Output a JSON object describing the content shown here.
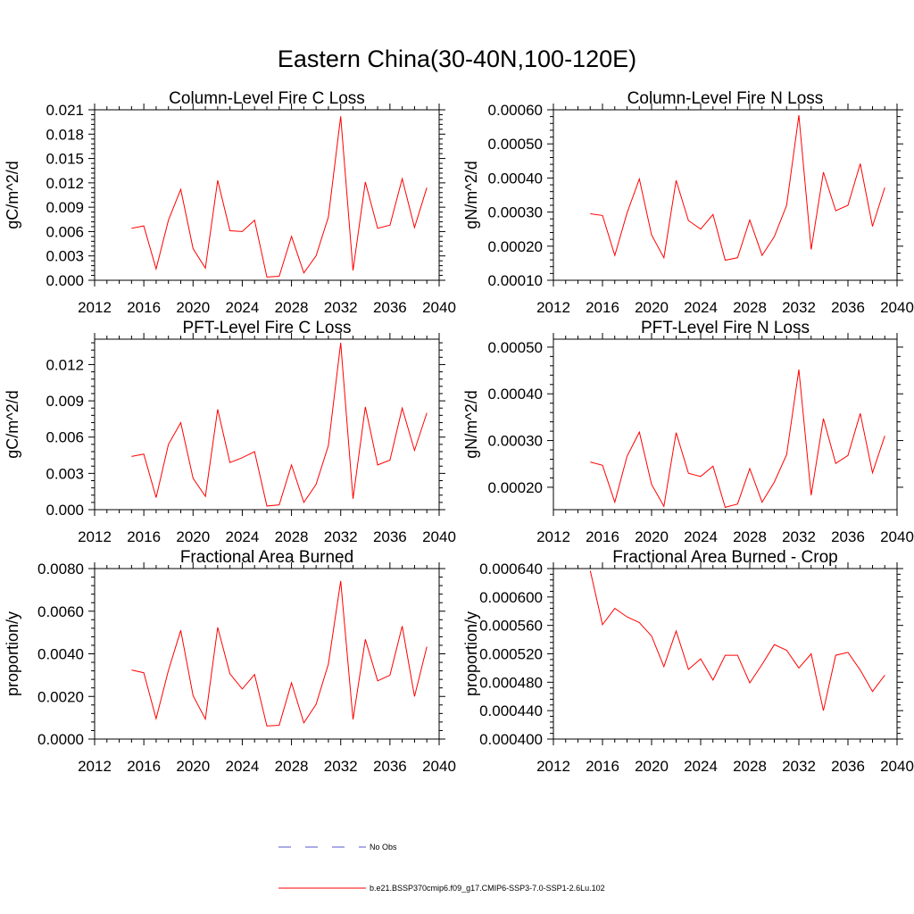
{
  "figure": {
    "title": "Eastern China(30-40N,100-120E)"
  },
  "legend": {
    "items": [
      {
        "label": "No Obs",
        "color": "#5555cc",
        "style": "dashed"
      },
      {
        "label": "b.e21.BSSP370cmip6.f09_g17.CMIP6-SSP3-7.0-SSP1-2.6Lu.102",
        "color": "#ff0000",
        "style": "solid"
      }
    ]
  },
  "chart_data": [
    {
      "type": "line",
      "title": "Column-Level Fire C Loss",
      "ylabel": "gC/m^2/d",
      "xlim": [
        2012,
        2040
      ],
      "ylim": [
        0,
        0.021
      ],
      "xticks": [
        "2012",
        "2016",
        "2020",
        "2024",
        "2028",
        "2032",
        "2036",
        "2040"
      ],
      "yticks": [
        "0.000",
        "0.003",
        "0.006",
        "0.009",
        "0.012",
        "0.015",
        "0.018",
        "0.021"
      ],
      "x": [
        2015,
        2016,
        2017,
        2018,
        2019,
        2020,
        2021,
        2022,
        2023,
        2024,
        2025,
        2026,
        2027,
        2028,
        2029,
        2030,
        2031,
        2032,
        2033,
        2034,
        2035,
        2036,
        2037,
        2038,
        2039
      ],
      "series": [
        {
          "color": "#ff0000",
          "values": [
            0.0064,
            0.0067,
            0.0014,
            0.0074,
            0.0112,
            0.0039,
            0.0015,
            0.0123,
            0.0061,
            0.006,
            0.0074,
            0.0004,
            0.0005,
            0.0054,
            0.0009,
            0.003,
            0.0078,
            0.0202,
            0.0012,
            0.0121,
            0.0064,
            0.0068,
            0.0125,
            0.0065,
            0.0114
          ]
        }
      ]
    },
    {
      "type": "line",
      "title": "Column-Level Fire N Loss",
      "ylabel": "gN/m^2/d",
      "xlim": [
        2012,
        2040
      ],
      "ylim": [
        0.0001,
        0.0006
      ],
      "xticks": [
        "2012",
        "2016",
        "2020",
        "2024",
        "2028",
        "2032",
        "2036",
        "2040"
      ],
      "yticks": [
        "0.00010",
        "0.00020",
        "0.00030",
        "0.00040",
        "0.00050",
        "0.00060"
      ],
      "x": [
        2015,
        2016,
        2017,
        2018,
        2019,
        2020,
        2021,
        2022,
        2023,
        2024,
        2025,
        2026,
        2027,
        2028,
        2029,
        2030,
        2031,
        2032,
        2033,
        2034,
        2035,
        2036,
        2037,
        2038,
        2039
      ],
      "series": [
        {
          "color": "#ff0000",
          "values": [
            0.000295,
            0.00029,
            0.000173,
            0.000297,
            0.000397,
            0.000233,
            0.000166,
            0.000393,
            0.000275,
            0.00025,
            0.000293,
            0.000159,
            0.000166,
            0.000277,
            0.000173,
            0.000228,
            0.00032,
            0.000584,
            0.00019,
            0.000417,
            0.000304,
            0.00032,
            0.000442,
            0.000258,
            0.000372
          ]
        }
      ]
    },
    {
      "type": "line",
      "title": "PFT-Level Fire C Loss",
      "ylabel": "gC/m^2/d",
      "xlim": [
        2012,
        2040
      ],
      "ylim": [
        0,
        0.0141
      ],
      "xticks": [
        "2012",
        "2016",
        "2020",
        "2024",
        "2028",
        "2032",
        "2036",
        "2040"
      ],
      "yticks": [
        "0.000",
        "0.003",
        "0.006",
        "0.009",
        "0.012"
      ],
      "x": [
        2015,
        2016,
        2017,
        2018,
        2019,
        2020,
        2021,
        2022,
        2023,
        2024,
        2025,
        2026,
        2027,
        2028,
        2029,
        2030,
        2031,
        2032,
        2033,
        2034,
        2035,
        2036,
        2037,
        2038,
        2039
      ],
      "series": [
        {
          "color": "#ff0000",
          "values": [
            0.0044,
            0.0046,
            0.001,
            0.0054,
            0.0072,
            0.0026,
            0.0011,
            0.0083,
            0.0039,
            0.0043,
            0.0048,
            0.0003,
            0.0004,
            0.0037,
            0.0006,
            0.0021,
            0.0053,
            0.0138,
            0.0009,
            0.0085,
            0.0037,
            0.0041,
            0.0084,
            0.0049,
            0.008
          ]
        }
      ]
    },
    {
      "type": "line",
      "title": "PFT-Level Fire N Loss",
      "ylabel": "gN/m^2/d",
      "xlim": [
        2012,
        2040
      ],
      "ylim": [
        0.000152,
        0.000517
      ],
      "xticks": [
        "2012",
        "2016",
        "2020",
        "2024",
        "2028",
        "2032",
        "2036",
        "2040"
      ],
      "yticks": [
        "0.00020",
        "0.00030",
        "0.00040",
        "0.00050"
      ],
      "x": [
        2015,
        2016,
        2017,
        2018,
        2019,
        2020,
        2021,
        2022,
        2023,
        2024,
        2025,
        2026,
        2027,
        2028,
        2029,
        2030,
        2031,
        2032,
        2033,
        2034,
        2035,
        2036,
        2037,
        2038,
        2039
      ],
      "series": [
        {
          "color": "#ff0000",
          "values": [
            0.000254,
            0.000247,
            0.000168,
            0.000266,
            0.000318,
            0.000206,
            0.000159,
            0.000317,
            0.00023,
            0.000223,
            0.000245,
            0.000157,
            0.000164,
            0.00024,
            0.000168,
            0.000211,
            0.00027,
            0.000452,
            0.000183,
            0.000347,
            0.000251,
            0.000268,
            0.000358,
            0.000231,
            0.00031
          ]
        }
      ]
    },
    {
      "type": "line",
      "title": "Fractional Area Burned",
      "ylabel": "proportion/y",
      "xlim": [
        2012,
        2040
      ],
      "ylim": [
        0,
        0.008
      ],
      "xticks": [
        "2012",
        "2016",
        "2020",
        "2024",
        "2028",
        "2032",
        "2036",
        "2040"
      ],
      "yticks": [
        "0.0000",
        "0.0020",
        "0.0040",
        "0.0060",
        "0.0080"
      ],
      "x": [
        2015,
        2016,
        2017,
        2018,
        2019,
        2020,
        2021,
        2022,
        2023,
        2024,
        2025,
        2026,
        2027,
        2028,
        2029,
        2030,
        2031,
        2032,
        2033,
        2034,
        2035,
        2036,
        2037,
        2038,
        2039
      ],
      "series": [
        {
          "color": "#ff0000",
          "values": [
            0.00324,
            0.00311,
            0.00096,
            0.00322,
            0.0051,
            0.00204,
            0.00094,
            0.00524,
            0.00306,
            0.00235,
            0.00303,
            0.00061,
            0.00065,
            0.00264,
            0.00076,
            0.00163,
            0.00352,
            0.00742,
            0.00092,
            0.00468,
            0.00273,
            0.003,
            0.0053,
            0.002,
            0.00433
          ]
        }
      ]
    },
    {
      "type": "line",
      "title": "Fractional Area Burned - Crop",
      "ylabel": "proportion/y",
      "xlim": [
        2012,
        2040
      ],
      "ylim": [
        0.0004,
        0.00064
      ],
      "xticks": [
        "2012",
        "2016",
        "2020",
        "2024",
        "2028",
        "2032",
        "2036",
        "2040"
      ],
      "yticks": [
        "0.000400",
        "0.000440",
        "0.000480",
        "0.000520",
        "0.000560",
        "0.000600",
        "0.000640"
      ],
      "x": [
        2015,
        2016,
        2017,
        2018,
        2019,
        2020,
        2021,
        2022,
        2023,
        2024,
        2025,
        2026,
        2027,
        2028,
        2029,
        2030,
        2031,
        2032,
        2033,
        2034,
        2035,
        2036,
        2037,
        2038,
        2039
      ],
      "series": [
        {
          "color": "#ff0000",
          "values": [
            0.000637,
            0.000561,
            0.000584,
            0.000572,
            0.000564,
            0.000545,
            0.000502,
            0.000552,
            0.000498,
            0.000513,
            0.000483,
            0.000518,
            0.000518,
            0.000479,
            0.000505,
            0.000533,
            0.000525,
            0.0005,
            0.00052,
            0.00044,
            0.000518,
            0.000522,
            0.000497,
            0.000467,
            0.00049
          ]
        }
      ]
    }
  ]
}
